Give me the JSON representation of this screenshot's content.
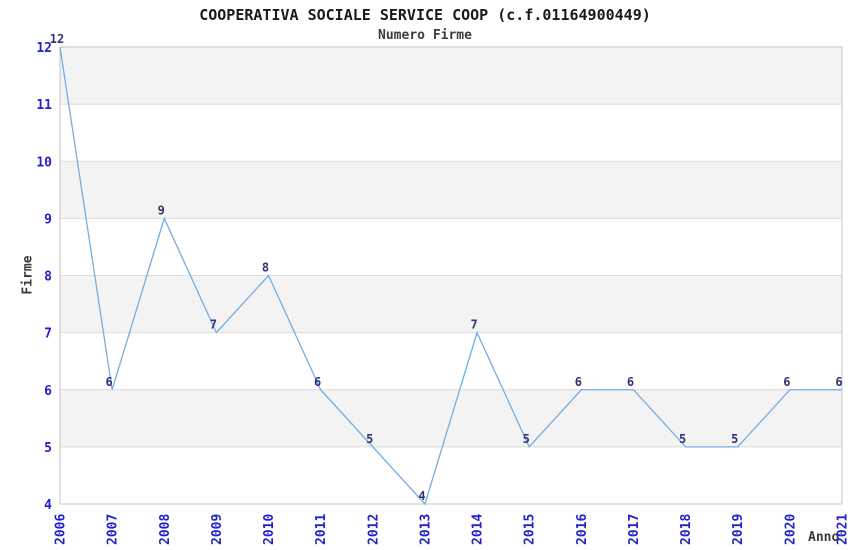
{
  "chart_data": {
    "type": "line",
    "title": "COOPERATIVA SOCIALE SERVICE COOP (c.f.01164900449)",
    "subtitle": "Numero Firme",
    "xlabel": "Anno",
    "ylabel": "Firme",
    "x": [
      "2006",
      "2007",
      "2008",
      "2009",
      "2010",
      "2011",
      "2012",
      "2013",
      "2014",
      "2015",
      "2016",
      "2017",
      "2018",
      "2019",
      "2020",
      "2021"
    ],
    "series": [
      {
        "name": "Numero Firme",
        "values": [
          12,
          6,
          9,
          7,
          8,
          6,
          5,
          4,
          7,
          5,
          6,
          6,
          5,
          5,
          6,
          6
        ]
      }
    ],
    "ylim": [
      4,
      12
    ],
    "y_ticks": [
      4,
      5,
      6,
      7,
      8,
      9,
      10,
      11,
      12
    ],
    "grid": true,
    "bands_alternating": true,
    "data_labels": true,
    "legend_position": "none",
    "colors": {
      "line": "#74ade2",
      "tick_label": "#2222cc",
      "point_label": "#333377",
      "band": "#f3f3f3",
      "gridline": "#dcdcdc",
      "border": "#c6c6c6",
      "title": "#1a1a1a",
      "subtitle": "#3c3c3c",
      "axis_title": "#3c3c3c",
      "background": "#ffffff"
    }
  }
}
